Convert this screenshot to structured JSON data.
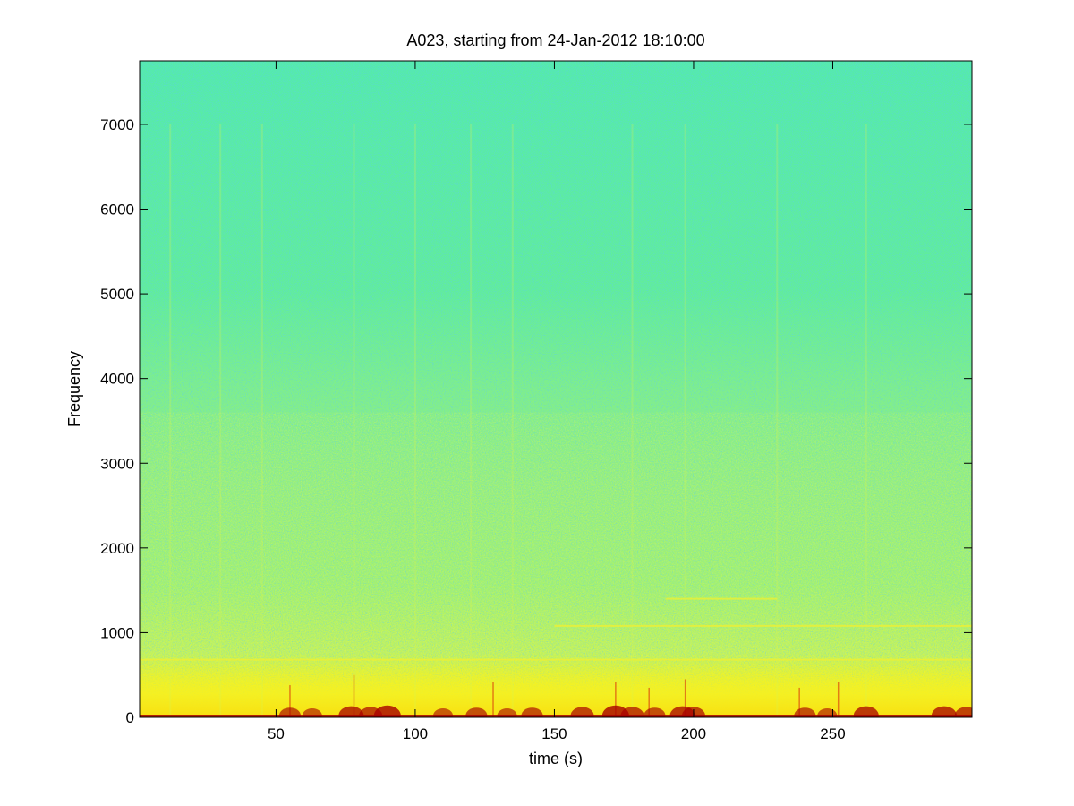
{
  "chart_data": {
    "type": "heatmap",
    "title": "A023, starting from 24-Jan-2012 18:10:00",
    "xlabel": "time (s)",
    "ylabel": "Frequency",
    "xlim": [
      1,
      300
    ],
    "ylim": [
      0,
      7750
    ],
    "x_ticks": [
      50,
      100,
      150,
      200,
      250
    ],
    "y_ticks": [
      0,
      1000,
      2000,
      3000,
      4000,
      5000,
      6000,
      7000
    ],
    "grid": false,
    "colormap": "jet",
    "colors": {
      "high_frequency_background": "#55f5a8",
      "mid_frequency_band": "#c6f65a",
      "low_frequency_band": "#f0f020",
      "bottom_band": "#f06010",
      "peak_energy": "#a80000"
    },
    "horizontal_tonal_lines": [
      {
        "frequency": 680,
        "start_time": 1,
        "end_time": 300
      },
      {
        "frequency": 1080,
        "start_time": 150,
        "end_time": 300
      },
      {
        "frequency": 1400,
        "start_time": 190,
        "end_time": 230
      }
    ],
    "vertical_transients": [
      {
        "time": 55,
        "top_frequency": 380
      },
      {
        "time": 78,
        "top_frequency": 500
      },
      {
        "time": 128,
        "top_frequency": 420
      },
      {
        "time": 172,
        "top_frequency": 420
      },
      {
        "time": 184,
        "top_frequency": 350
      },
      {
        "time": 197,
        "top_frequency": 450
      },
      {
        "time": 238,
        "top_frequency": 350
      },
      {
        "time": 252,
        "top_frequency": 420
      }
    ],
    "bottom_red_clusters": [
      {
        "time": 55,
        "strength": 0.6
      },
      {
        "time": 63,
        "strength": 0.5
      },
      {
        "time": 77,
        "strength": 0.8
      },
      {
        "time": 84,
        "strength": 0.7
      },
      {
        "time": 90,
        "strength": 0.9
      },
      {
        "time": 110,
        "strength": 0.5
      },
      {
        "time": 122,
        "strength": 0.6
      },
      {
        "time": 133,
        "strength": 0.5
      },
      {
        "time": 142,
        "strength": 0.6
      },
      {
        "time": 160,
        "strength": 0.7
      },
      {
        "time": 172,
        "strength": 0.9
      },
      {
        "time": 178,
        "strength": 0.7
      },
      {
        "time": 186,
        "strength": 0.6
      },
      {
        "time": 196,
        "strength": 0.8
      },
      {
        "time": 200,
        "strength": 0.7
      },
      {
        "time": 240,
        "strength": 0.6
      },
      {
        "time": 248,
        "strength": 0.5
      },
      {
        "time": 262,
        "strength": 0.8
      },
      {
        "time": 290,
        "strength": 0.8
      },
      {
        "time": 298,
        "strength": 0.7
      }
    ]
  }
}
